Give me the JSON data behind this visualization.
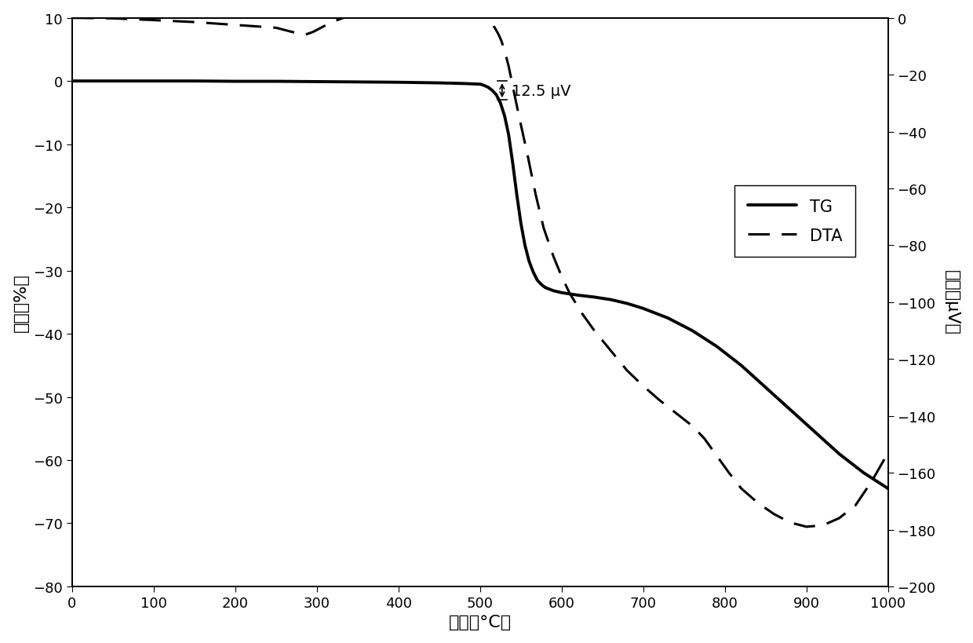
{
  "title": "",
  "xlabel": "温度（°C）",
  "ylabel_left": "重量（%）",
  "ylabel_right": "熱量（μV）",
  "xlim": [
    0,
    1000
  ],
  "ylim_left": [
    -80,
    10
  ],
  "ylim_right": [
    -200,
    0
  ],
  "xticks": [
    0,
    100,
    200,
    300,
    400,
    500,
    600,
    700,
    800,
    900,
    1000
  ],
  "yticks_left": [
    -80,
    -70,
    -60,
    -50,
    -40,
    -30,
    -20,
    -10,
    0,
    10
  ],
  "yticks_right": [
    -200,
    -180,
    -160,
    -140,
    -120,
    -100,
    -80,
    -60,
    -40,
    -20,
    0
  ],
  "annotation_text": "12.5 μV",
  "legend_labels": [
    "TG",
    "DTA"
  ],
  "line_color": "#000000",
  "background_color": "#ffffff",
  "tg_x": [
    0,
    50,
    100,
    150,
    200,
    250,
    300,
    350,
    400,
    450,
    480,
    500,
    505,
    510,
    515,
    520,
    525,
    530,
    535,
    540,
    545,
    550,
    555,
    560,
    565,
    570,
    575,
    580,
    590,
    600,
    610,
    620,
    640,
    660,
    680,
    700,
    730,
    760,
    790,
    820,
    850,
    880,
    910,
    940,
    970,
    1000
  ],
  "tg_y": [
    0,
    0,
    0,
    0,
    -0.05,
    -0.05,
    -0.1,
    -0.15,
    -0.2,
    -0.3,
    -0.4,
    -0.5,
    -0.7,
    -1.0,
    -1.5,
    -2.2,
    -3.5,
    -5.5,
    -8.5,
    -13.0,
    -18.0,
    -22.5,
    -26.0,
    -28.5,
    -30.2,
    -31.5,
    -32.2,
    -32.7,
    -33.2,
    -33.5,
    -33.7,
    -33.9,
    -34.2,
    -34.6,
    -35.2,
    -36.0,
    -37.5,
    -39.5,
    -42.0,
    -45.0,
    -48.5,
    -52.0,
    -55.5,
    -59.0,
    -62.0,
    -64.5
  ],
  "dta_x": [
    0,
    50,
    100,
    150,
    200,
    250,
    270,
    285,
    295,
    305,
    315,
    325,
    340,
    355,
    370,
    385,
    400,
    420,
    440,
    460,
    475,
    485,
    492,
    498,
    503,
    508,
    513,
    518,
    522,
    526,
    530,
    535,
    540,
    548,
    558,
    568,
    578,
    590,
    600,
    610,
    625,
    640,
    660,
    680,
    700,
    720,
    740,
    760,
    775,
    785,
    795,
    805,
    820,
    840,
    860,
    880,
    900,
    920,
    940,
    960,
    980,
    1000
  ],
  "dta_y": [
    0,
    -0.2,
    -0.8,
    -1.5,
    -2.5,
    -3.5,
    -5.0,
    -6.0,
    -5.0,
    -3.5,
    -2.0,
    -0.8,
    0.8,
    2.5,
    4.5,
    6.5,
    8.0,
    8.8,
    9.2,
    9.3,
    9.0,
    8.0,
    6.5,
    4.5,
    2.5,
    0.5,
    -1.5,
    -3.5,
    -5.5,
    -8.0,
    -11.5,
    -17.0,
    -24.0,
    -35.0,
    -48.0,
    -62.0,
    -74.0,
    -84.0,
    -91.0,
    -97.0,
    -104.0,
    -110.0,
    -117.0,
    -124.0,
    -129.5,
    -134.5,
    -139.0,
    -143.5,
    -148.0,
    -152.0,
    -156.0,
    -160.0,
    -165.5,
    -170.5,
    -174.5,
    -177.5,
    -179.0,
    -178.5,
    -176.0,
    -171.5,
    -163.0,
    -153.0
  ]
}
